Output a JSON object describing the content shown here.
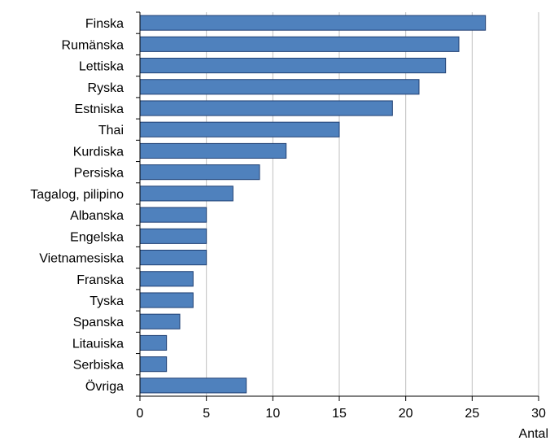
{
  "chart_data": {
    "type": "bar",
    "orientation": "horizontal",
    "title": "",
    "xlabel": "Antal",
    "ylabel": "",
    "xlim": [
      0,
      30
    ],
    "xticks": [
      0,
      5,
      10,
      15,
      20,
      25,
      30
    ],
    "grid": "vertical",
    "legend": "none",
    "bar_color": "#4f81bd",
    "bar_edge_color": "#1f3f73",
    "categories": [
      "Finska",
      "Rumänska",
      "Lettiska",
      "Ryska",
      "Estniska",
      "Thai",
      "Kurdiska",
      "Persiska",
      "Tagalog, pilipino",
      "Albanska",
      "Engelska",
      "Vietnamesiska",
      "Franska",
      "Tyska",
      "Spanska",
      "Litauiska",
      "Serbiska",
      "Övriga"
    ],
    "values": [
      26,
      24,
      23,
      21,
      19,
      15,
      11,
      9,
      7,
      5,
      5,
      5,
      4,
      4,
      3,
      2,
      2,
      8
    ]
  }
}
